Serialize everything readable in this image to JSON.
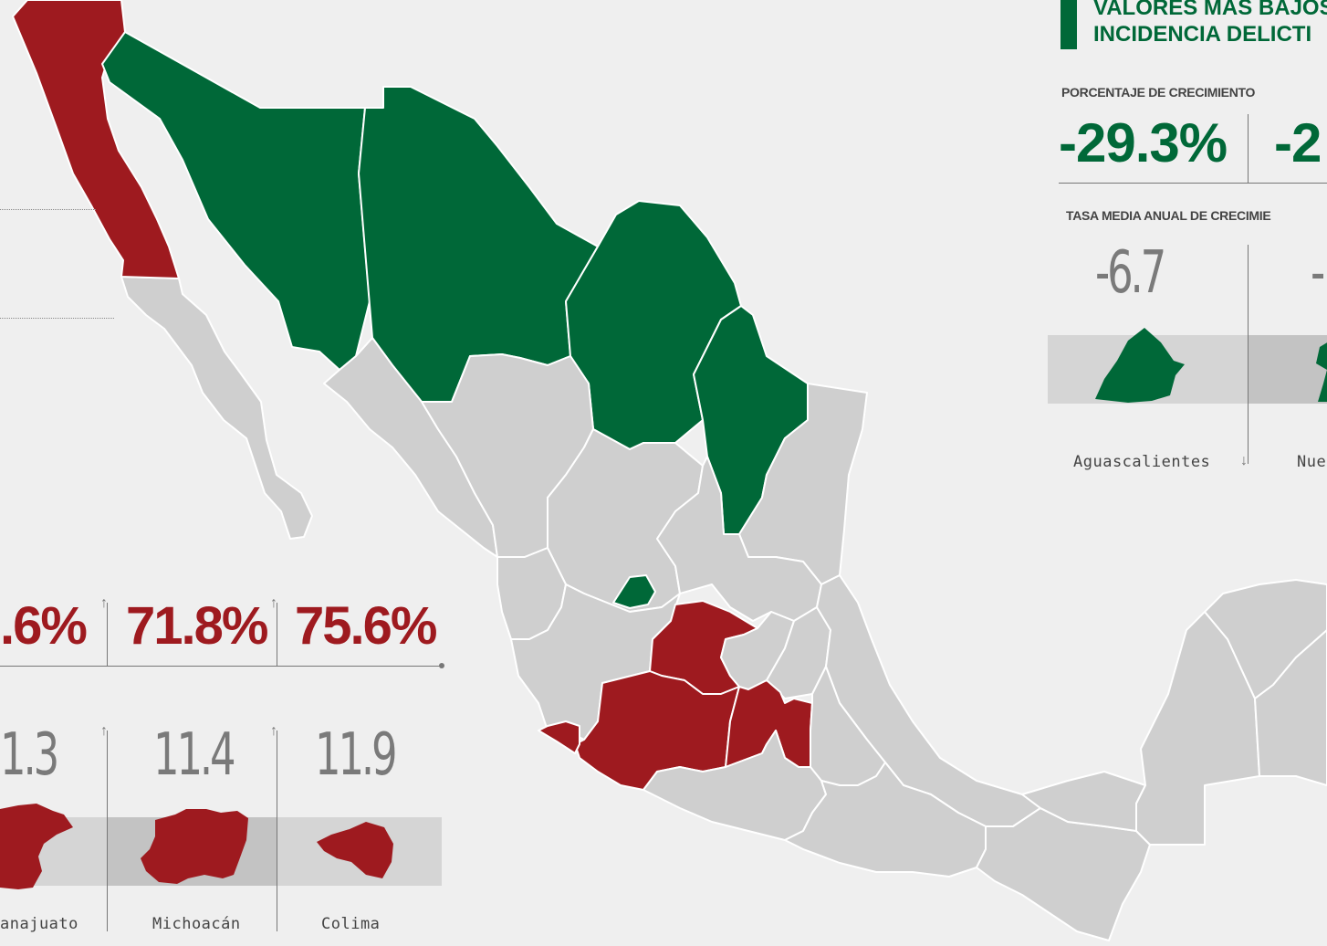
{
  "legend_top": {
    "title_line1": "VALORES MÁS BAJOS",
    "title_line2": "INCIDENCIA DELICTI",
    "growth_header": "PORCENTAJE DE CRECIMIENTO",
    "growth_values": [
      "-29.3%",
      "-2"
    ],
    "tma_header": "TASA MEDIA ANUAL DE CRECIMIE",
    "tma_values": [
      "-6.7",
      "-"
    ],
    "states": [
      "Aguascalientes",
      "Nue"
    ]
  },
  "legend_bottom": {
    "growth_values": [
      ".6%",
      "71.8%",
      "75.6%"
    ],
    "tma_values": [
      "1.3",
      "11.4",
      "11.9"
    ],
    "states": [
      "anajuato",
      "Michoacán",
      "Colima"
    ]
  },
  "colors": {
    "background": "#efefef",
    "state_gray": "#cfcfcf",
    "highest_red": "#9e1a1f",
    "lowest_green": "#006838"
  }
}
